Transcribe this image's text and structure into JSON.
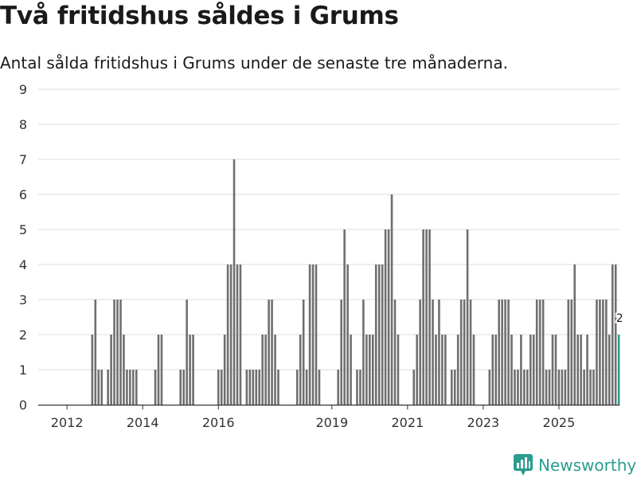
{
  "page": {
    "title": "Två fritidshus såldes i Grums",
    "subtitle": "Antal sålda fritidshus i Grums under de senaste tre månaderna."
  },
  "brand": {
    "name": "Newsworthy",
    "color": "#2a9d8f",
    "icon": "newsworthy-logo-icon"
  },
  "colors": {
    "bar": "#6f6f72",
    "highlight": "#2a9d8f",
    "grid": "#dcdcdc",
    "axis": "#333333"
  },
  "chart_data": {
    "type": "bar",
    "title": "Två fritidshus såldes i Grums",
    "subtitle": "Antal sålda fritidshus i Grums under de senaste tre månaderna.",
    "xlabel": "",
    "ylabel": "",
    "ylim": [
      0,
      9
    ],
    "yticks": [
      0,
      1,
      2,
      3,
      4,
      5,
      6,
      7,
      8,
      9
    ],
    "xticks": [
      "2012",
      "2014",
      "2016",
      "2019",
      "2021",
      "2023",
      "2025"
    ],
    "grid": true,
    "highlight_last": true,
    "last_value_label": "2",
    "series": [
      {
        "values": [
          0,
          0,
          0,
          0,
          0,
          0,
          0,
          0,
          0,
          2,
          3,
          1,
          1,
          0,
          1,
          2,
          3,
          3,
          3,
          2,
          1,
          1,
          1,
          1,
          0,
          0,
          0,
          0,
          0,
          1,
          2,
          2,
          0,
          0,
          0,
          0,
          0,
          1,
          1,
          3,
          2,
          2,
          0,
          0,
          0,
          0,
          0,
          0,
          0,
          1,
          1,
          2,
          4,
          4,
          7,
          4,
          4,
          0,
          1,
          1,
          1,
          1,
          1,
          2,
          2,
          3,
          3,
          2,
          1,
          0,
          0,
          0,
          0,
          0,
          1,
          2,
          3,
          1,
          4,
          4,
          4,
          1,
          0,
          0,
          0,
          0,
          0,
          1,
          3,
          5,
          4,
          2,
          0,
          1,
          1,
          3,
          2,
          2,
          2,
          4,
          4,
          4,
          5,
          5,
          6,
          3,
          2,
          0,
          0,
          0,
          0,
          1,
          2,
          3,
          5,
          5,
          5,
          3,
          2,
          3,
          2,
          2,
          0,
          1,
          1,
          2,
          3,
          3,
          5,
          3,
          2,
          0,
          0,
          0,
          0,
          1,
          2,
          2,
          3,
          3,
          3,
          3,
          2,
          1,
          1,
          2,
          1,
          1,
          2,
          2,
          3,
          3,
          3,
          1,
          1,
          2,
          2,
          1,
          1,
          1,
          3,
          3,
          4,
          2,
          2,
          1,
          2,
          1,
          1,
          3,
          3,
          3,
          3,
          2,
          4,
          4,
          2
        ]
      }
    ]
  }
}
